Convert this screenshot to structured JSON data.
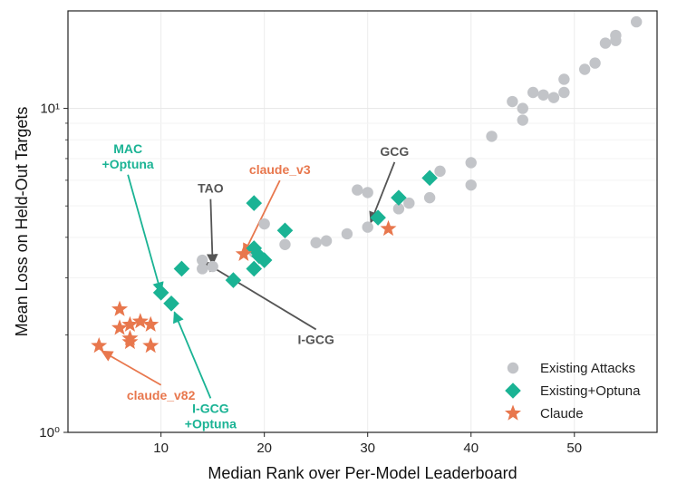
{
  "chart_data": {
    "type": "scatter",
    "xlabel": "Median Rank over Per-Model Leaderboard",
    "ylabel": "Mean Loss on Held-Out Targets",
    "xlim": [
      1,
      58
    ],
    "ylim": [
      1,
      20
    ],
    "yscale": "log",
    "grid": true,
    "x_ticks": [
      10,
      20,
      30,
      40,
      50
    ],
    "y_ticks": [
      {
        "value": 1,
        "label": "10⁰"
      },
      {
        "value": 10,
        "label": "10¹"
      }
    ],
    "legend_position": "bottom-right",
    "colors": {
      "existing": "#c2c4c8",
      "optuna": "#1ab394",
      "claude": "#e8774d",
      "annot_dark": "#555555"
    },
    "series": [
      {
        "name": "Existing Attacks",
        "marker": "circle",
        "points": [
          [
            14,
            3.4
          ],
          [
            14,
            3.2
          ],
          [
            15,
            3.25
          ],
          [
            19,
            3.6
          ],
          [
            20,
            4.4
          ],
          [
            22,
            3.8
          ],
          [
            25,
            3.85
          ],
          [
            26,
            3.9
          ],
          [
            28,
            4.1
          ],
          [
            29,
            5.6
          ],
          [
            30,
            5.5
          ],
          [
            30,
            4.3
          ],
          [
            33,
            4.9
          ],
          [
            34,
            5.1
          ],
          [
            36,
            5.3
          ],
          [
            37,
            6.4
          ],
          [
            40,
            6.8
          ],
          [
            40,
            5.8
          ],
          [
            42,
            8.2
          ],
          [
            44,
            10.5
          ],
          [
            45,
            10.0
          ],
          [
            45,
            9.2
          ],
          [
            46,
            11.2
          ],
          [
            47,
            11.0
          ],
          [
            48,
            10.8
          ],
          [
            49,
            11.2
          ],
          [
            49,
            12.3
          ],
          [
            51,
            13.2
          ],
          [
            52,
            13.8
          ],
          [
            53,
            15.9
          ],
          [
            54,
            16.2
          ],
          [
            54,
            16.8
          ],
          [
            56,
            18.5
          ]
        ]
      },
      {
        "name": "Existing+Optuna",
        "marker": "diamond",
        "points": [
          [
            10,
            2.7
          ],
          [
            11,
            2.5
          ],
          [
            12,
            3.2
          ],
          [
            17,
            2.95
          ],
          [
            19,
            3.2
          ],
          [
            19,
            3.7
          ],
          [
            19.5,
            3.5
          ],
          [
            20,
            3.4
          ],
          [
            19,
            5.1
          ],
          [
            22,
            4.2
          ],
          [
            31,
            4.6
          ],
          [
            33,
            5.3
          ],
          [
            36,
            6.1
          ]
        ]
      },
      {
        "name": "Claude",
        "marker": "star",
        "points": [
          [
            4,
            1.85
          ],
          [
            6,
            2.1
          ],
          [
            6,
            2.4
          ],
          [
            7,
            2.15
          ],
          [
            7,
            1.95
          ],
          [
            7,
            1.9
          ],
          [
            8,
            2.2
          ],
          [
            9,
            2.15
          ],
          [
            9,
            1.85
          ],
          [
            18,
            3.55
          ],
          [
            32,
            4.25
          ]
        ]
      }
    ],
    "annotations": [
      {
        "text": "MAC\n+Optuna",
        "color": "optuna",
        "text_at": [
          6.8,
          7.1
        ],
        "point": [
          10,
          2.7
        ]
      },
      {
        "text": "TAO",
        "color": "annot_dark",
        "text_at": [
          14.8,
          5.65
        ],
        "point": [
          15,
          3.3
        ]
      },
      {
        "text": "claude_v3",
        "color": "claude",
        "text_at": [
          21.5,
          6.45
        ],
        "point": [
          18,
          3.55
        ]
      },
      {
        "text": "GCG",
        "color": "annot_dark",
        "text_at": [
          32.6,
          7.35
        ],
        "point": [
          30.3,
          4.45
        ]
      },
      {
        "text": "I-GCG",
        "color": "annot_dark",
        "text_at": [
          25,
          1.93
        ],
        "point": [
          14.2,
          3.35
        ]
      },
      {
        "text": "claude_v82",
        "color": "claude",
        "text_at": [
          10,
          1.3
        ],
        "point": [
          4.3,
          1.78
        ]
      },
      {
        "text": "I-GCG\n+Optuna",
        "color": "optuna",
        "text_at": [
          14.8,
          1.12
        ],
        "point": [
          11.3,
          2.35
        ]
      }
    ]
  }
}
